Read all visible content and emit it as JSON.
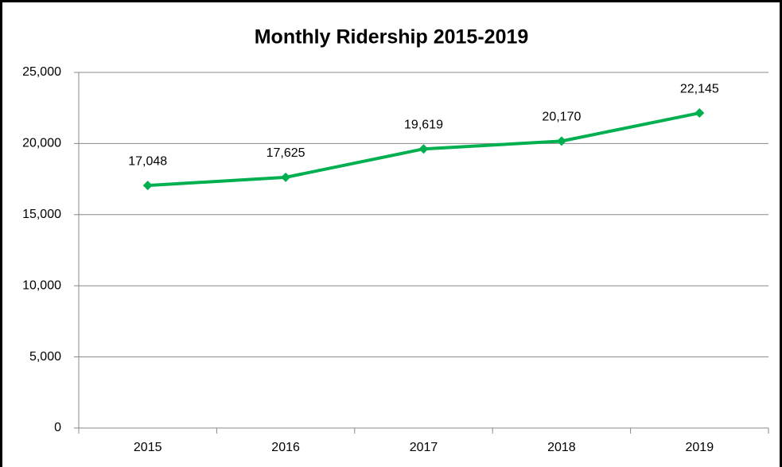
{
  "chart_data": {
    "type": "line",
    "title": "Monthly Ridership 2015-2019",
    "categories": [
      "2015",
      "2016",
      "2017",
      "2018",
      "2019"
    ],
    "values": [
      17048,
      17625,
      19619,
      20170,
      22145
    ],
    "value_labels": [
      "17,048",
      "17,625",
      "19,619",
      "20,170",
      "22,145"
    ],
    "color": "#00b050",
    "ylim": [
      0,
      25000
    ],
    "yticks": [
      0,
      {
        "value": 5000,
        "label": "5,000"
      },
      {
        "value": 10000,
        "label": "10,000"
      },
      {
        "value": 15000,
        "label": "15,000"
      },
      {
        "value": 20000,
        "label": "20,000"
      },
      {
        "value": 25000,
        "label": "25,000"
      }
    ],
    "grid": true
  }
}
